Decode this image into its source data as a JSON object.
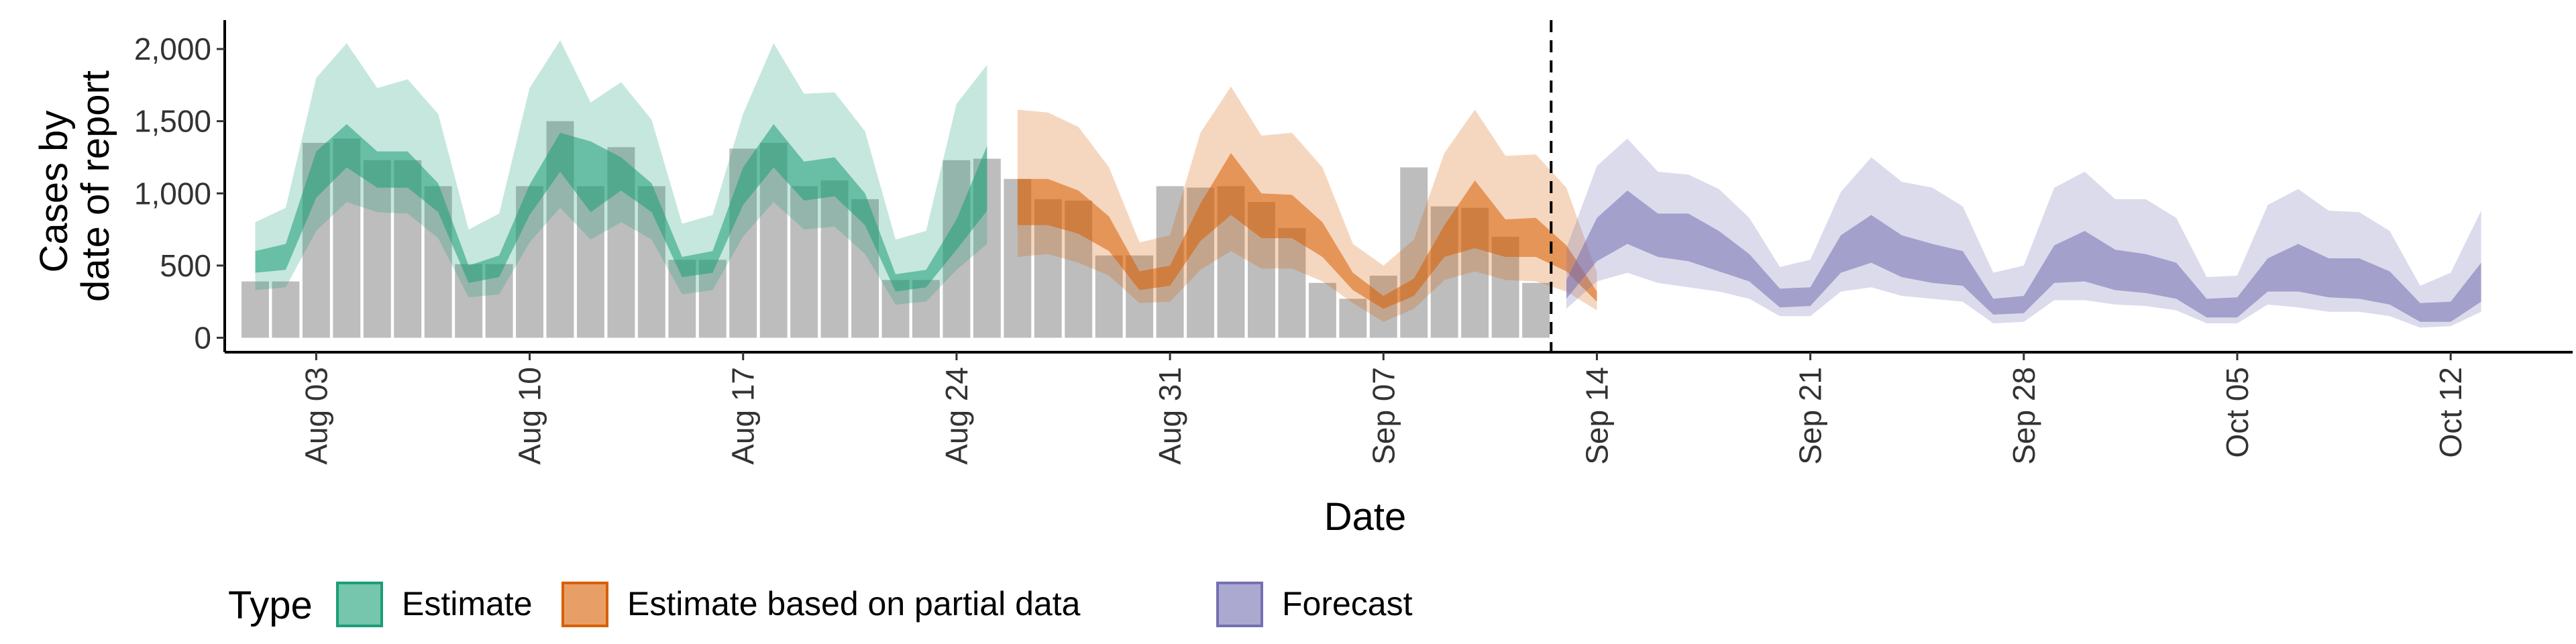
{
  "chart_data": {
    "type": "area",
    "title": "",
    "xlabel": "Date",
    "ylabel_lines": [
      "Cases by",
      "date of report"
    ],
    "x_start": "2020-07-31",
    "x_end": "2020-10-16",
    "ylim": [
      -100,
      2200
    ],
    "y_ticks": [
      0,
      500,
      1000,
      1500,
      2000
    ],
    "y_tick_labels": [
      "0",
      "500",
      "1,000",
      "1,500",
      "2,000"
    ],
    "x_ticks": [
      "2020-08-03",
      "2020-08-10",
      "2020-08-17",
      "2020-08-24",
      "2020-08-31",
      "2020-09-07",
      "2020-09-14",
      "2020-09-21",
      "2020-09-28",
      "2020-10-05",
      "2020-10-12"
    ],
    "x_tick_labels": [
      "Aug 03",
      "Aug 10",
      "Aug 17",
      "Aug 24",
      "Aug 31",
      "Sep 07",
      "Sep 14",
      "Sep 21",
      "Sep 28",
      "Oct 05",
      "Oct 12"
    ],
    "forecast_date": "2020-09-13",
    "grid": false,
    "legend_position": "bottom",
    "legend": {
      "title": "Type",
      "items": [
        {
          "label": "Estimate",
          "color": "#1b9e77"
        },
        {
          "label": "Estimate based on partial data",
          "color": "#d95f02"
        },
        {
          "label": "Forecast",
          "color": "#7570b3"
        }
      ]
    },
    "bar_color": "#bdbdbd",
    "bars": {
      "start": "2020-08-01",
      "values": [
        390,
        390,
        1350,
        1380,
        1230,
        1230,
        1050,
        510,
        510,
        1050,
        1500,
        1050,
        1320,
        1050,
        540,
        540,
        1310,
        1350,
        1050,
        1090,
        960,
        400,
        400,
        1230,
        1240,
        1100,
        960,
        950,
        570,
        570,
        1050,
        1040,
        1050,
        940,
        760,
        380,
        270,
        430,
        1180,
        910,
        900,
        700,
        380
      ]
    },
    "series": [
      {
        "name": "Estimate",
        "color": "#1b9e77",
        "start": "2020-08-01",
        "lo90": [
          330,
          350,
          740,
          940,
          870,
          860,
          690,
          280,
          300,
          660,
          900,
          680,
          800,
          680,
          300,
          330,
          700,
          940,
          750,
          770,
          580,
          230,
          250,
          470,
          650
        ],
        "lo50": [
          450,
          470,
          970,
          1180,
          1040,
          1040,
          870,
          380,
          420,
          850,
          1150,
          870,
          1020,
          870,
          420,
          450,
          920,
          1180,
          950,
          980,
          780,
          320,
          350,
          610,
          880
        ],
        "hi50": [
          600,
          650,
          1290,
          1480,
          1290,
          1290,
          1070,
          500,
          570,
          1060,
          1420,
          1360,
          1250,
          1070,
          560,
          600,
          1180,
          1480,
          1220,
          1250,
          1000,
          440,
          470,
          820,
          1330
        ],
        "hi90": [
          800,
          900,
          1800,
          2040,
          1730,
          1790,
          1550,
          750,
          860,
          1730,
          2060,
          1630,
          1770,
          1510,
          790,
          850,
          1550,
          2040,
          1690,
          1700,
          1430,
          680,
          740,
          1620,
          1890
        ]
      },
      {
        "name": "Estimate based on partial data",
        "color": "#d95f02",
        "start": "2020-08-26",
        "lo90": [
          560,
          580,
          520,
          430,
          240,
          250,
          470,
          600,
          480,
          480,
          390,
          240,
          110,
          200,
          400,
          460,
          400,
          390,
          320,
          190
        ],
        "lo50": [
          780,
          780,
          720,
          600,
          330,
          360,
          670,
          850,
          690,
          690,
          560,
          330,
          200,
          290,
          560,
          620,
          560,
          560,
          460,
          250
        ],
        "hi50": [
          1100,
          1100,
          1020,
          840,
          460,
          500,
          930,
          1280,
          1000,
          990,
          800,
          450,
          290,
          410,
          780,
          1090,
          820,
          830,
          640,
          320
        ],
        "hi90": [
          1580,
          1560,
          1460,
          1180,
          660,
          710,
          1420,
          1740,
          1400,
          1420,
          1180,
          650,
          500,
          680,
          1280,
          1580,
          1260,
          1270,
          1040,
          450
        ]
      },
      {
        "name": "Forecast",
        "color": "#7570b3",
        "start": "2020-09-13",
        "lo90": [
          200,
          390,
          450,
          380,
          350,
          320,
          270,
          150,
          150,
          320,
          350,
          290,
          270,
          250,
          100,
          110,
          260,
          260,
          230,
          220,
          190,
          100,
          100,
          230,
          210,
          180,
          180,
          150,
          70,
          80,
          180
        ],
        "lo50": [
          270,
          530,
          650,
          560,
          530,
          460,
          390,
          210,
          220,
          450,
          520,
          420,
          380,
          360,
          160,
          170,
          380,
          390,
          330,
          310,
          270,
          140,
          140,
          320,
          320,
          280,
          270,
          230,
          110,
          110,
          250
        ],
        "hi50": [
          400,
          830,
          1020,
          860,
          860,
          740,
          580,
          340,
          350,
          710,
          850,
          710,
          650,
          600,
          270,
          290,
          640,
          740,
          610,
          580,
          520,
          270,
          280,
          550,
          650,
          550,
          550,
          460,
          240,
          250,
          520
        ],
        "hi90": [
          620,
          1190,
          1380,
          1150,
          1130,
          1030,
          830,
          490,
          540,
          1010,
          1250,
          1080,
          1040,
          910,
          450,
          500,
          1040,
          1150,
          960,
          960,
          830,
          420,
          430,
          920,
          1030,
          880,
          870,
          740,
          360,
          450,
          880
        ]
      }
    ]
  }
}
